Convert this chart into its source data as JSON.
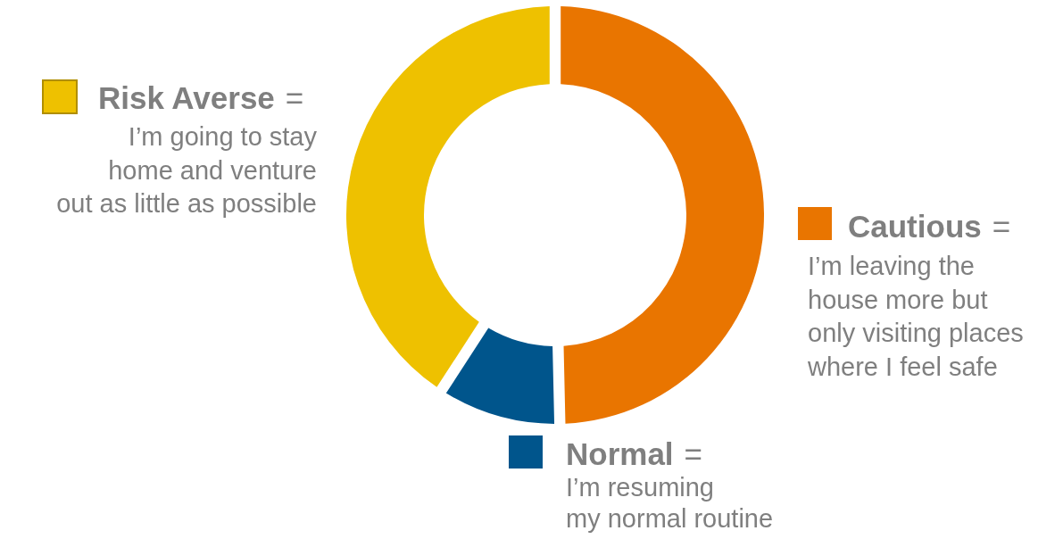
{
  "chart_data": {
    "type": "donut",
    "categories": [
      "Cautious",
      "Normal",
      "Risk Averse"
    ],
    "values": [
      50,
      9,
      41
    ],
    "colors": [
      "#e97500",
      "#00558c",
      "#eec100"
    ],
    "legend": "bottom left",
    "annotations": [
      "=\nI’m leaving the\nhouse more but\nonly visiting places\nwhere I feel safe",
      "=\nI’m resuming\nmy normal routine",
      "=\nI’m going to stay\nhome and venture\nout as little as possible"
    ]
  }
}
